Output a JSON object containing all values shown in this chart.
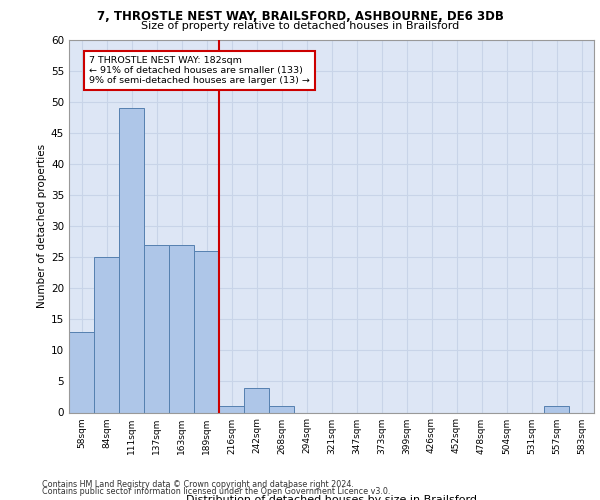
{
  "title1": "7, THROSTLE NEST WAY, BRAILSFORD, ASHBOURNE, DE6 3DB",
  "title2": "Size of property relative to detached houses in Brailsford",
  "xlabel": "Distribution of detached houses by size in Brailsford",
  "ylabel": "Number of detached properties",
  "footnote1": "Contains HM Land Registry data © Crown copyright and database right 2024.",
  "footnote2": "Contains public sector information licensed under the Open Government Licence v3.0.",
  "annotation_line1": "7 THROSTLE NEST WAY: 182sqm",
  "annotation_line2": "← 91% of detached houses are smaller (133)",
  "annotation_line3": "9% of semi-detached houses are larger (13) →",
  "bar_labels": [
    "58sqm",
    "84sqm",
    "111sqm",
    "137sqm",
    "163sqm",
    "189sqm",
    "216sqm",
    "242sqm",
    "268sqm",
    "294sqm",
    "321sqm",
    "347sqm",
    "373sqm",
    "399sqm",
    "426sqm",
    "452sqm",
    "478sqm",
    "504sqm",
    "531sqm",
    "557sqm",
    "583sqm"
  ],
  "bar_values": [
    13,
    25,
    49,
    27,
    27,
    26,
    1,
    4,
    1,
    0,
    0,
    0,
    0,
    0,
    0,
    0,
    0,
    0,
    0,
    1,
    0
  ],
  "bar_color": "#aec6e8",
  "bar_edge_color": "#5580b0",
  "vline_color": "#cc0000",
  "annotation_box_color": "#ffffff",
  "annotation_box_edge": "#cc0000",
  "ylim": [
    0,
    60
  ],
  "yticks": [
    0,
    5,
    10,
    15,
    20,
    25,
    30,
    35,
    40,
    45,
    50,
    55,
    60
  ],
  "grid_color": "#c8d4e8",
  "bg_color": "#dde6f5"
}
